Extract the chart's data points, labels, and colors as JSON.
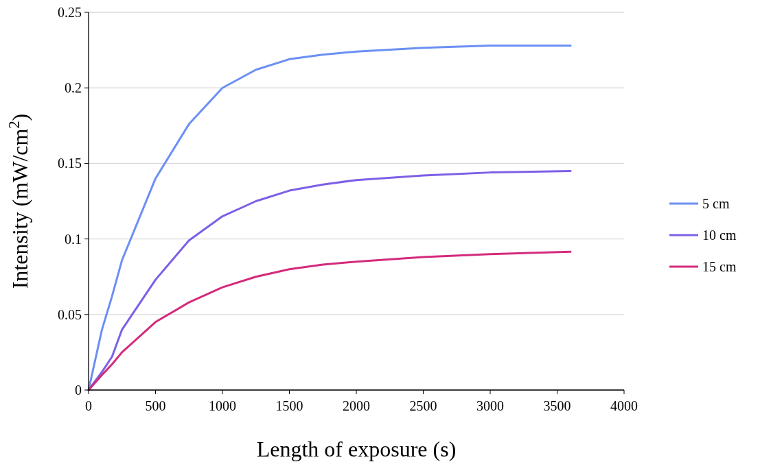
{
  "chart_data": {
    "type": "line",
    "xlabel": "Length of exposure (s)",
    "ylabel": "Intensity (mW/cm$^{2}$)",
    "x": [
      0,
      100,
      175,
      250,
      500,
      750,
      1000,
      1250,
      1500,
      1750,
      2000,
      2500,
      3000,
      3600
    ],
    "series": [
      {
        "name": "5 cm",
        "color": "#6b8ff5",
        "values": [
          0,
          0.04,
          0.062,
          0.086,
          0.14,
          0.176,
          0.2,
          0.212,
          0.219,
          0.222,
          0.224,
          0.2265,
          0.228,
          0.228
        ]
      },
      {
        "name": "10 cm",
        "color": "#7d5fe6",
        "values": [
          0,
          0.012,
          0.022,
          0.04,
          0.073,
          0.099,
          0.115,
          0.125,
          0.132,
          0.136,
          0.139,
          0.142,
          0.144,
          0.145
        ]
      },
      {
        "name": "15 cm",
        "color": "#d42a7c",
        "values": [
          0,
          0.01,
          0.017,
          0.025,
          0.045,
          0.058,
          0.068,
          0.075,
          0.08,
          0.083,
          0.085,
          0.088,
          0.09,
          0.0915
        ]
      }
    ],
    "xlim": [
      0,
      4000
    ],
    "xticks": [
      0,
      500,
      1000,
      1500,
      2000,
      2500,
      3000,
      3500,
      4000
    ],
    "ylim": [
      0,
      0.25
    ],
    "yticks": [
      0,
      0.05,
      0.1,
      0.15,
      0.2,
      0.25
    ],
    "grid": "y",
    "legend": "right",
    "marker": "none",
    "line_style": "solid"
  }
}
